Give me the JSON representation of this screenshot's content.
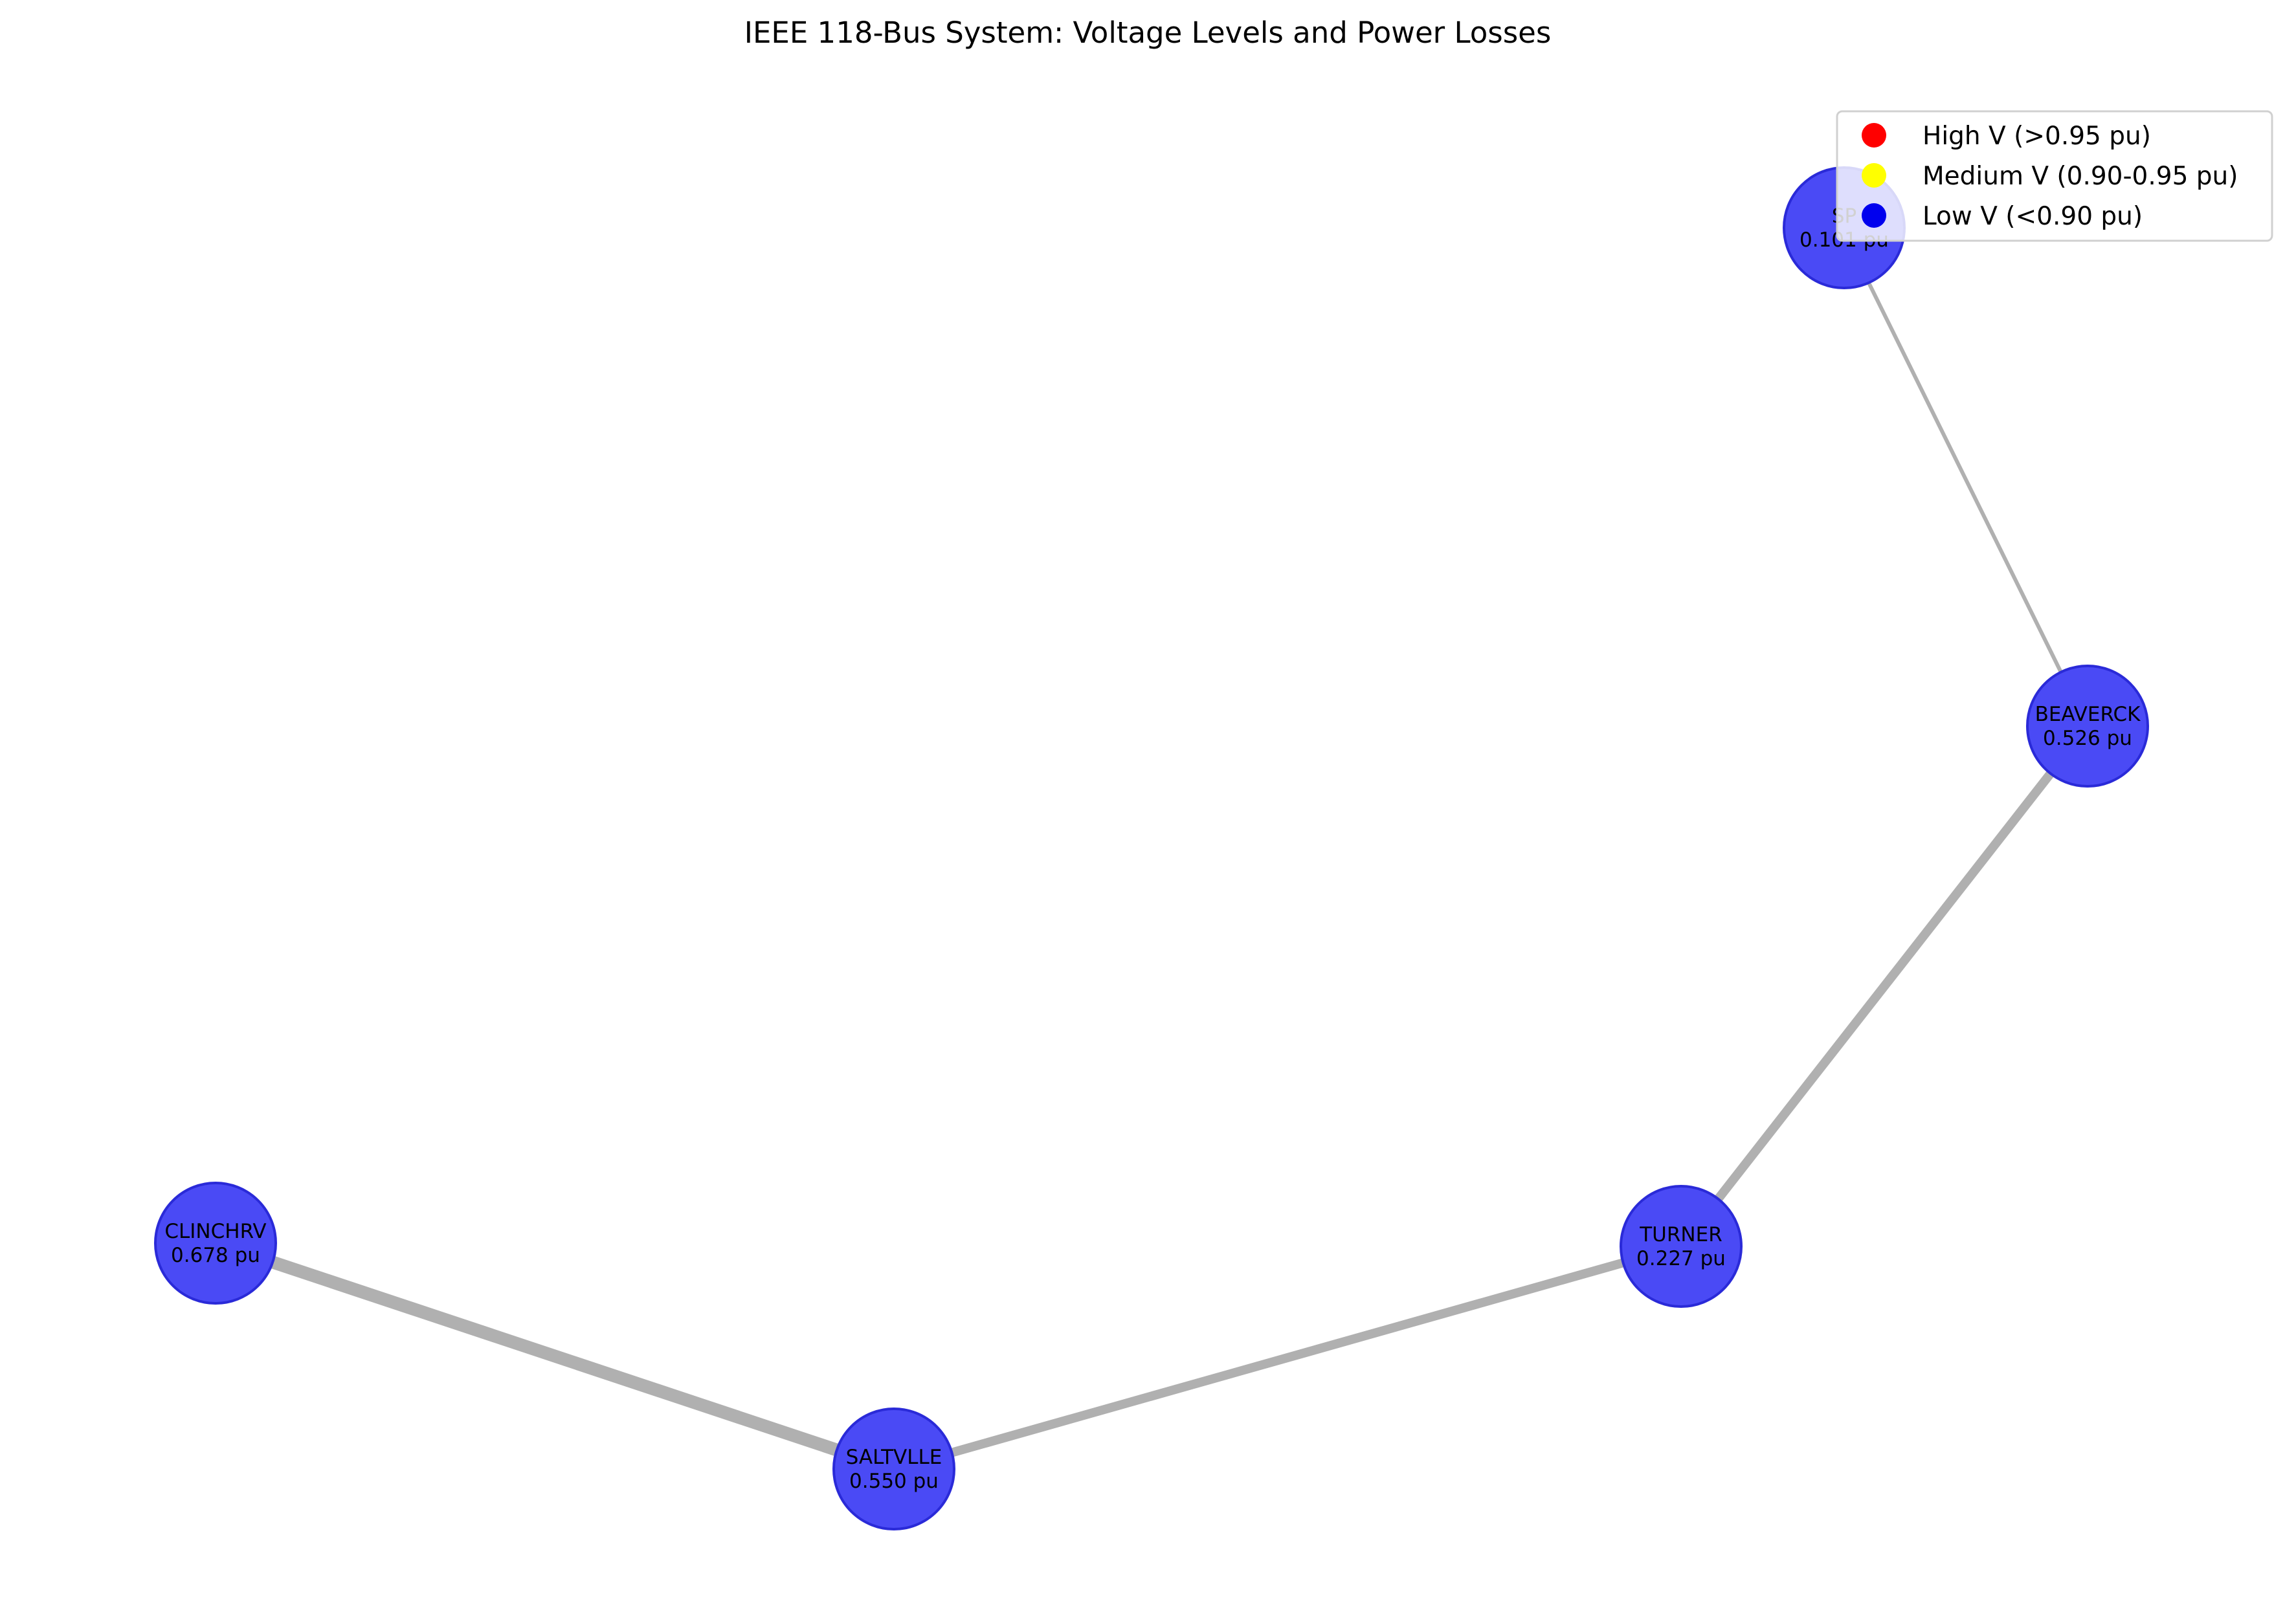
{
  "title": "IEEE 118-Bus System: Voltage Levels and Power Losses",
  "colors": {
    "high": "#ff0000",
    "medium": "#ffff00",
    "low": "#0000ee",
    "node_fill": "#4a4af5",
    "node_stroke": "#2a2ad8",
    "edge": "#b0b0b0"
  },
  "legend": [
    {
      "label": "High V (>0.95 pu)",
      "color": "#ff0000"
    },
    {
      "label": "Medium V (0.90-0.95 pu)",
      "color": "#ffff00"
    },
    {
      "label": "Low V (<0.90 pu)",
      "color": "#0000ee"
    }
  ],
  "nodes": [
    {
      "id": "spr",
      "name": "SP",
      "voltage": "0.101 pu"
    },
    {
      "id": "beaverck",
      "name": "BEAVERCK",
      "voltage": "0.526 pu"
    },
    {
      "id": "turner",
      "name": "TURNER",
      "voltage": "0.227 pu"
    },
    {
      "id": "saltvlle",
      "name": "SALTVLLE",
      "voltage": "0.550 pu"
    },
    {
      "id": "clinchrv",
      "name": "CLINCHRV",
      "voltage": "0.678 pu"
    }
  ],
  "edges": [
    {
      "from": "spr",
      "to": "beaverck",
      "weight": "thin"
    },
    {
      "from": "beaverck",
      "to": "turner",
      "weight": "medium"
    },
    {
      "from": "turner",
      "to": "saltvlle",
      "weight": "medium"
    },
    {
      "from": "saltvlle",
      "to": "clinchrv",
      "weight": "thick"
    }
  ]
}
